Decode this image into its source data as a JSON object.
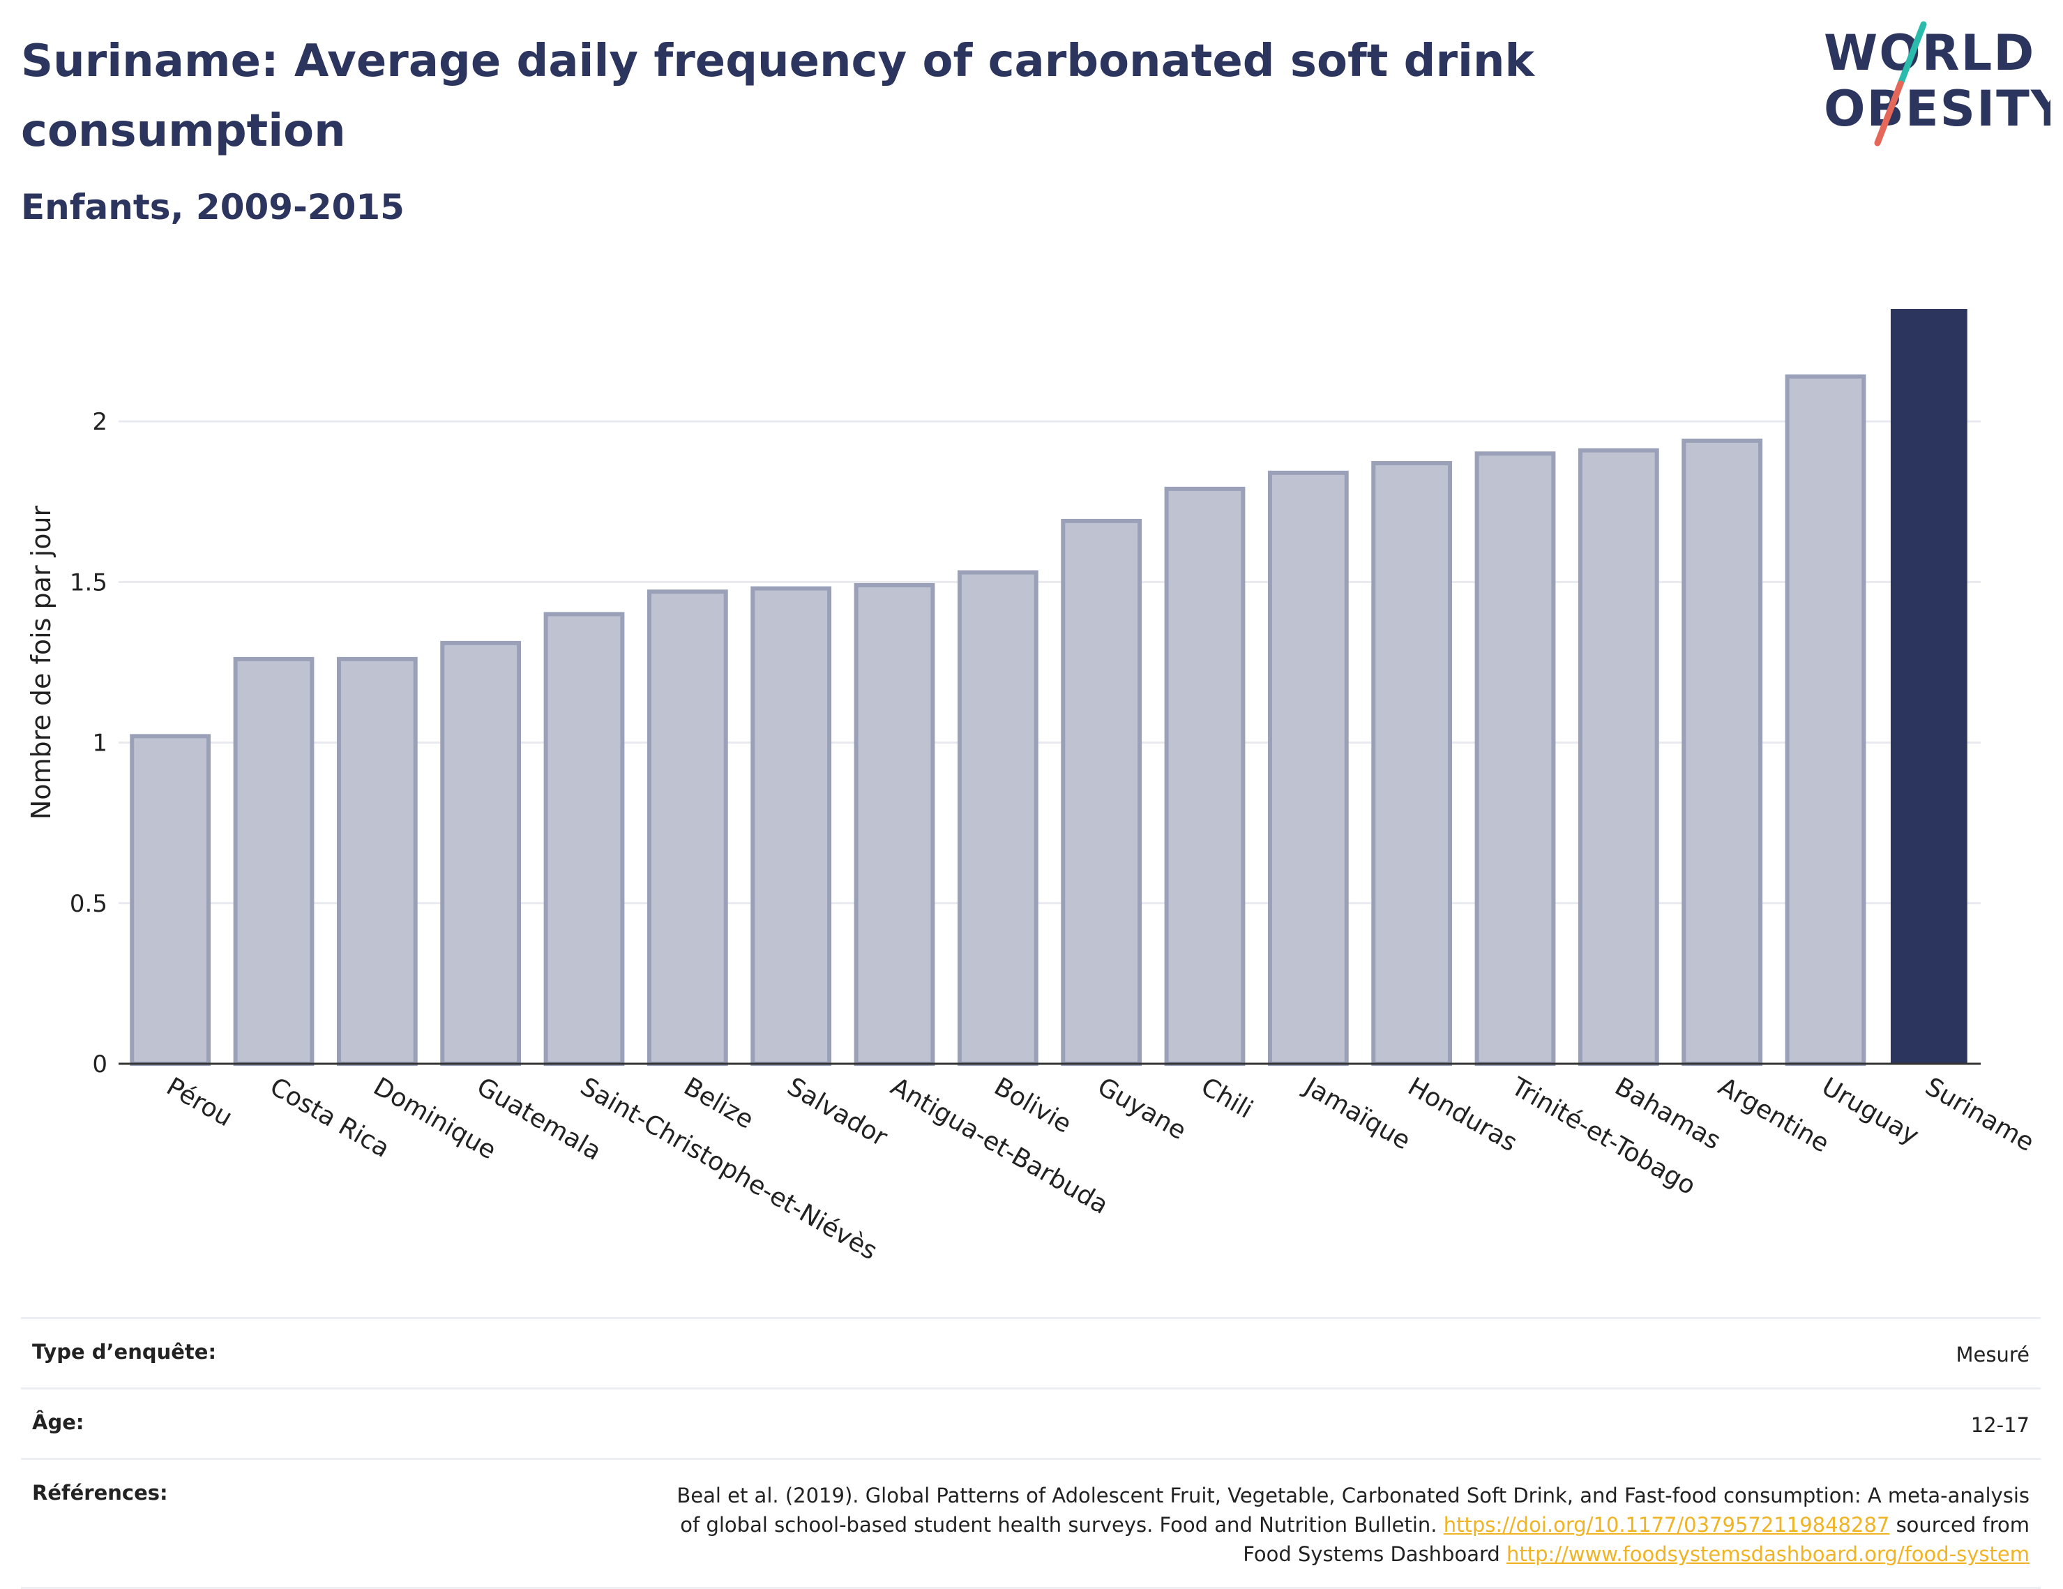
{
  "header": {
    "title": "Suriname: Average daily frequency of carbonated soft drink consumption",
    "subtitle": "Enfants, 2009-2015"
  },
  "logo": {
    "line1": "WORLD",
    "line2": "OBESITY",
    "accent_colors": [
      "#2bbbad",
      "#e5675a"
    ]
  },
  "colors": {
    "highlight": "#2b355e",
    "bar_fill": "#bfc3d1",
    "bar_stroke": "#9aa0b8",
    "gridline": "#e9eaf0"
  },
  "chart_data": {
    "type": "bar",
    "title": "",
    "xlabel": "",
    "ylabel": "Nombre de fois par jour",
    "ylim": [
      0,
      2.4
    ],
    "yticks": [
      0,
      0.5,
      1,
      1.5,
      2
    ],
    "ytick_labels": [
      "0",
      "0.5",
      "1",
      "1.5",
      "2"
    ],
    "grid": true,
    "highlighted_category": "Suriname",
    "categories": [
      "Pérou",
      "Costa Rica",
      "Dominique",
      "Guatemala",
      "Saint-Christophe-et-Niévès",
      "Belize",
      "Salvador",
      "Antigua-et-Barbuda",
      "Bolivie",
      "Guyane",
      "Chili",
      "Jamaïque",
      "Honduras",
      "Trinité-et-Tobago",
      "Bahamas",
      "Argentine",
      "Uruguay",
      "Suriname"
    ],
    "values": [
      1.02,
      1.26,
      1.26,
      1.31,
      1.4,
      1.47,
      1.48,
      1.49,
      1.53,
      1.69,
      1.79,
      1.84,
      1.87,
      1.9,
      1.91,
      1.94,
      2.14,
      2.35
    ]
  },
  "info": {
    "survey_type_label": "Type d’enquête:",
    "survey_type_value": "Mesuré",
    "age_label": "Âge:",
    "age_value": "12-17",
    "references_label": "Références:",
    "references_text_1": "Beal et al. (2019). Global Patterns of Adolescent Fruit, Vegetable, Carbonated Soft Drink, and Fast-food consumption: A meta-analysis",
    "references_text_2": "of global school-based student health surveys. Food and Nutrition Bulletin.",
    "references_link_1": "https://doi.org/10.1177/0379572119848287",
    "references_text_3": "sourced from",
    "references_text_4": "Food Systems Dashboard",
    "references_link_2": "http://www.foodsystemsdashboard.org/food-system"
  }
}
